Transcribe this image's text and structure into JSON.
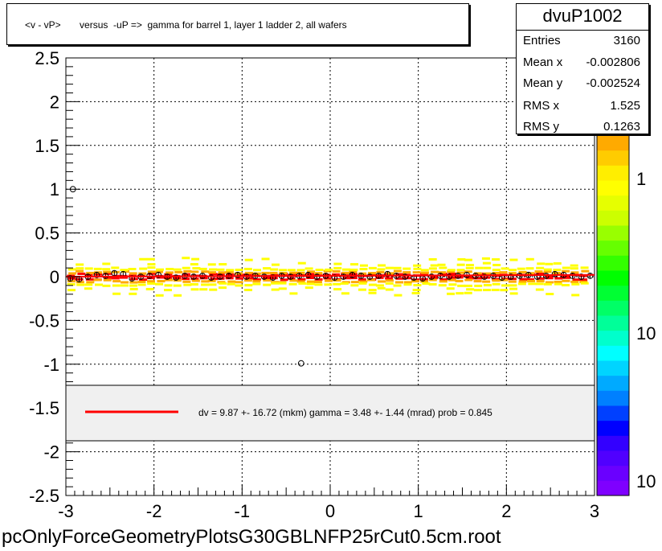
{
  "title": "<v - vP>       versus  -uP =>  gamma for barrel 1, layer 1 ladder 2, all wafers",
  "stats": {
    "name": "dvuP1002",
    "rows": [
      {
        "label": "Entries",
        "value": "3160"
      },
      {
        "label": "Mean x",
        "value": "-0.002806"
      },
      {
        "label": "Mean y",
        "value": "-0.002524"
      },
      {
        "label": "RMS x",
        "value": "1.525"
      },
      {
        "label": "RMS y",
        "value": "0.1263"
      }
    ]
  },
  "fit_legend": "dv =    9.87 +- 16.72 (mkm) gamma =    3.48 +-  1.44 (mrad) prob = 0.845",
  "footer": "pcOnlyForceGeometryPlotsG30GBLNFP25rCut0.5cm.root",
  "colors": {
    "fit_line": "#ff0000",
    "band_core": "#ff0000",
    "band_mid": "#ffaa00",
    "band_outer": "#ffff00",
    "marker": "#000000"
  },
  "chart_data": {
    "type": "scatter",
    "xlim": [
      -3,
      3
    ],
    "ylim": [
      -2.5,
      2.5
    ],
    "x_ticks": [
      "-3",
      "-2",
      "-1",
      "0",
      "1",
      "2",
      "3"
    ],
    "y_ticks": [
      "-2.5",
      "-2",
      "-1.5",
      "-1",
      "-0.5",
      "0",
      "0.5",
      "1",
      "1.5",
      "2",
      "2.5"
    ],
    "grid": true,
    "z_scale": "log",
    "z_tick_labels": [
      "1",
      "10",
      "10"
    ],
    "profile": {
      "x": [
        -2.95,
        -2.85,
        -2.75,
        -2.65,
        -2.55,
        -2.45,
        -2.35,
        -2.25,
        -2.15,
        -2.05,
        -1.95,
        -1.85,
        -1.75,
        -1.65,
        -1.55,
        -1.45,
        -1.35,
        -1.25,
        -1.15,
        -1.05,
        -0.95,
        -0.85,
        -0.75,
        -0.65,
        -0.55,
        -0.45,
        -0.35,
        -0.25,
        -0.15,
        -0.05,
        0.05,
        0.15,
        0.25,
        0.35,
        0.45,
        0.55,
        0.65,
        0.75,
        0.85,
        0.95,
        1.05,
        1.15,
        1.25,
        1.35,
        1.45,
        1.55,
        1.65,
        1.75,
        1.85,
        1.95,
        2.05,
        2.15,
        2.25,
        2.35,
        2.45,
        2.55,
        2.65,
        2.75,
        2.85,
        2.95
      ],
      "y": [
        -0.02,
        -0.03,
        0.0,
        0.02,
        0.01,
        0.04,
        0.03,
        -0.02,
        0.0,
        0.01,
        0.02,
        0.0,
        -0.01,
        0.01,
        0.0,
        0.01,
        -0.01,
        0.0,
        0.01,
        0.02,
        0.0,
        0.01,
        0.0,
        -0.01,
        0.01,
        0.0,
        0.01,
        0.02,
        0.0,
        0.01,
        -0.01,
        0.0,
        0.02,
        0.01,
        0.0,
        0.01,
        0.03,
        0.01,
        0.0,
        -0.01,
        -0.02,
        0.0,
        0.01,
        0.0,
        0.01,
        0.02,
        0.01,
        0.0,
        0.01,
        -0.01,
        0.0,
        0.01,
        0.02,
        0.0,
        0.01,
        0.03,
        0.02,
        0.01,
        0.0,
        0.01
      ]
    },
    "outliers": [
      {
        "x": -2.92,
        "y": 1.0
      },
      {
        "x": -0.33,
        "y": -0.99
      }
    ],
    "fit": {
      "intercept": 0.00987,
      "slope": 0.00348
    }
  }
}
